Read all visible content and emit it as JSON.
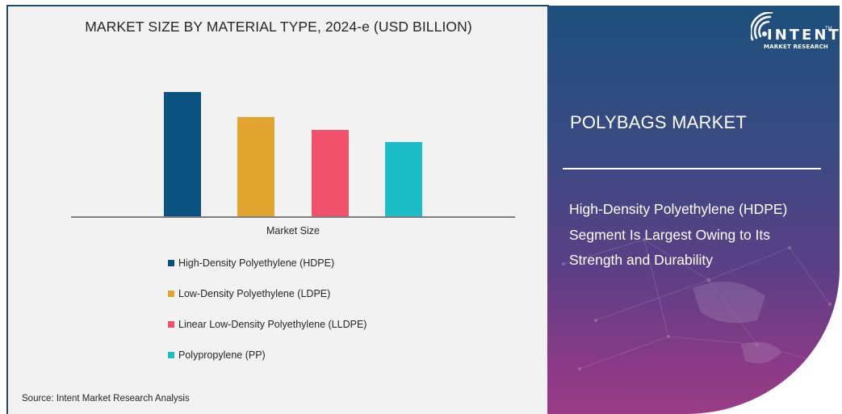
{
  "chart_data": {
    "type": "bar",
    "title": "MARKET SIZE BY MATERIAL TYPE, 2024-e (USD BILLION)",
    "xlabel": "Market Size",
    "ylabel": "",
    "categories": [
      "Market Size"
    ],
    "series": [
      {
        "name": "High-Density Polyethylene (HDPE)",
        "values": [
          156
        ],
        "color": "#0b5280"
      },
      {
        "name": "Low-Density Polyethylene (LDPE)",
        "values": [
          125
        ],
        "color": "#e1a530"
      },
      {
        "name": "Linear Low-Density Polyethylene (LLDPE)",
        "values": [
          109
        ],
        "color": "#f0506a"
      },
      {
        "name": "Polypropylene (PP)",
        "values": [
          94
        ],
        "color": "#1dbdc7"
      }
    ],
    "value_note": "relative bar heights (no axis values shown)",
    "ylim": [
      0,
      172
    ],
    "grid": false,
    "legend_position": "bottom"
  },
  "chart": {
    "title": "MARKET SIZE BY MATERIAL TYPE, 2024-e (USD BILLION)",
    "axis_label": "Market Size",
    "legend": [
      {
        "label": "High-Density Polyethylene (HDPE)",
        "color": "#0b5280"
      },
      {
        "label": "Low-Density Polyethylene (LDPE)",
        "color": "#e1a530"
      },
      {
        "label": "Linear Low-Density Polyethylene (LLDPE)",
        "color": "#f0506a"
      },
      {
        "label": "Polypropylene (PP)",
        "color": "#1dbdc7"
      }
    ],
    "source": "Source:  Intent Market Research Analysis"
  },
  "sidebar": {
    "logo": {
      "word": "INTENT",
      "tm": "TM",
      "sub": "MARKET RESEARCH"
    },
    "title": "POLYBAGS MARKET",
    "text": "High-Density Polyethylene (HDPE) Segment Is Largest Owing to Its Strength and Durability"
  }
}
